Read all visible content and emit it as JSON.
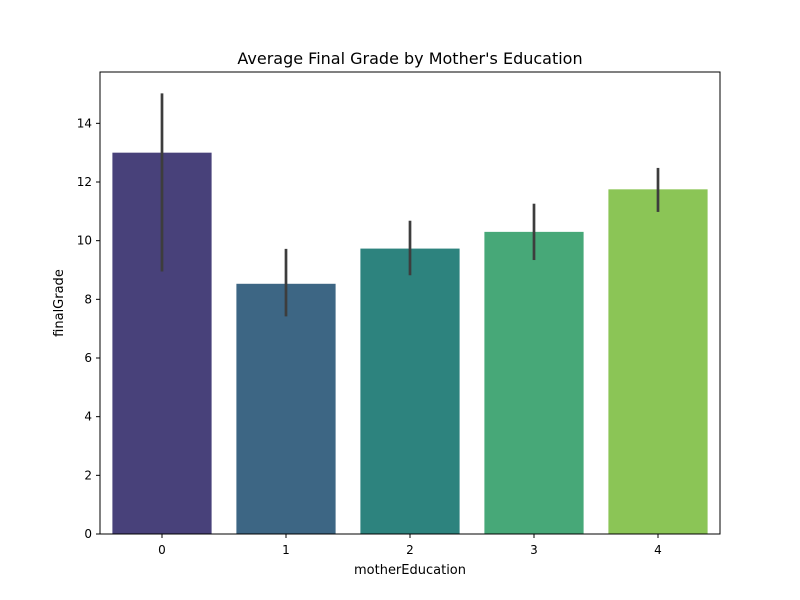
{
  "chart_data": {
    "type": "bar",
    "title": "Average Final Grade by Mother's Education",
    "xlabel": "motherEducation",
    "ylabel": "finalGrade",
    "categories": [
      "0",
      "1",
      "2",
      "3",
      "4"
    ],
    "values": [
      13.0,
      8.53,
      9.73,
      10.3,
      11.75
    ],
    "error_low": [
      8.95,
      7.42,
      8.82,
      9.34,
      10.98
    ],
    "error_high": [
      15.02,
      9.72,
      10.68,
      11.26,
      12.48
    ],
    "colors": [
      "#48417a",
      "#3d6684",
      "#2d837e",
      "#47a878",
      "#8bc556"
    ],
    "error_color": "#3d3d3d",
    "ylim": [
      0,
      15.75
    ],
    "yticks": [
      0,
      2,
      4,
      6,
      8,
      10,
      12,
      14
    ],
    "grid": false,
    "legend": "none"
  }
}
